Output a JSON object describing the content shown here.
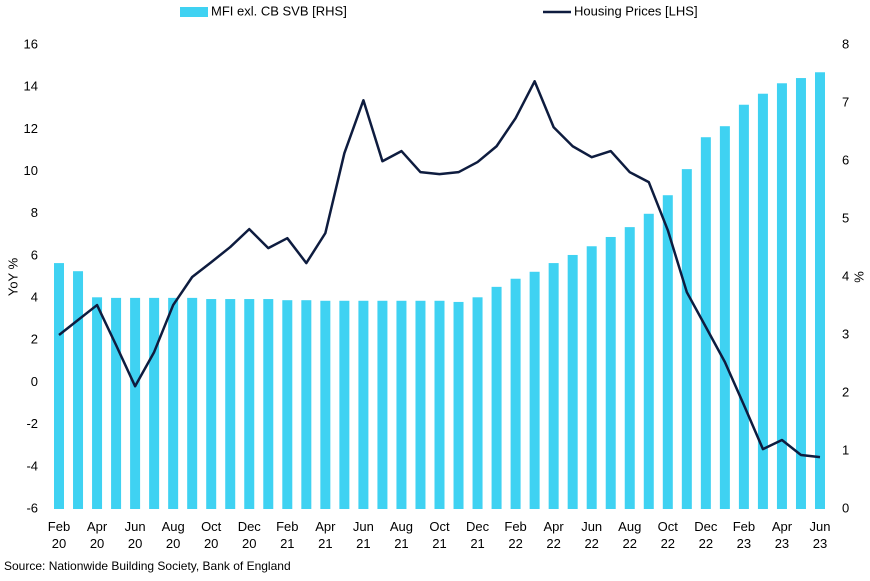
{
  "chart_data": {
    "type": "combo",
    "categories": [
      "Feb 20",
      null,
      "Apr 20",
      null,
      "Jun 20",
      null,
      "Aug 20",
      null,
      "Oct 20",
      null,
      "Dec 20",
      null,
      "Feb 21",
      null,
      "Apr 21",
      null,
      "Jun 21",
      null,
      "Aug 21",
      null,
      "Oct 21",
      null,
      "Dec 21",
      null,
      "Feb 22",
      null,
      "Apr 22",
      null,
      "Jun 22",
      null,
      "Aug 22",
      null,
      "Oct 22",
      null,
      "Dec 22",
      null,
      "Feb 23",
      null,
      "Apr 23",
      null,
      "Jun 23"
    ],
    "series": [
      {
        "name": "MFI exl. CB SVB [RHS]",
        "type": "bar",
        "axis": "y2",
        "color": "#3fd2f2",
        "values": [
          4.24,
          4.1,
          3.65,
          3.64,
          3.64,
          3.64,
          3.64,
          3.64,
          3.62,
          3.62,
          3.62,
          3.62,
          3.6,
          3.6,
          3.59,
          3.59,
          3.59,
          3.59,
          3.59,
          3.59,
          3.59,
          3.57,
          3.65,
          3.83,
          3.97,
          4.09,
          4.24,
          4.38,
          4.53,
          4.69,
          4.86,
          5.09,
          5.41,
          5.86,
          6.41,
          6.6,
          6.97,
          7.16,
          7.34,
          7.43,
          7.53
        ]
      },
      {
        "name": "Housing Prices [LHS]",
        "type": "line",
        "color": "#0e1c3f",
        "values": [
          2.25,
          2.96,
          3.67,
          1.77,
          -0.18,
          1.44,
          3.67,
          5.0,
          5.7,
          6.42,
          7.27,
          6.37,
          6.84,
          5.66,
          7.08,
          10.87,
          13.38,
          10.49,
          10.97,
          9.97,
          9.88,
          9.97,
          10.45,
          11.2,
          12.53,
          14.28,
          12.1,
          11.2,
          10.68,
          10.97,
          9.97,
          9.5,
          7.22,
          4.28,
          2.63,
          0.97,
          -1.07,
          -3.16,
          -2.73,
          -3.44,
          -3.54
        ]
      }
    ],
    "ylabel": "YoY %",
    "y2label": "%",
    "ylim": [
      -6,
      16
    ],
    "yticks": [
      -6,
      -4,
      -2,
      0,
      2,
      4,
      6,
      8,
      10,
      12,
      14,
      16
    ],
    "y2lim": [
      0,
      8
    ],
    "y2ticks": [
      0,
      1,
      2,
      3,
      4,
      5,
      6,
      7,
      8
    ],
    "legend": "top",
    "source": "Source:  Nationwide Building Society, Bank of England"
  }
}
